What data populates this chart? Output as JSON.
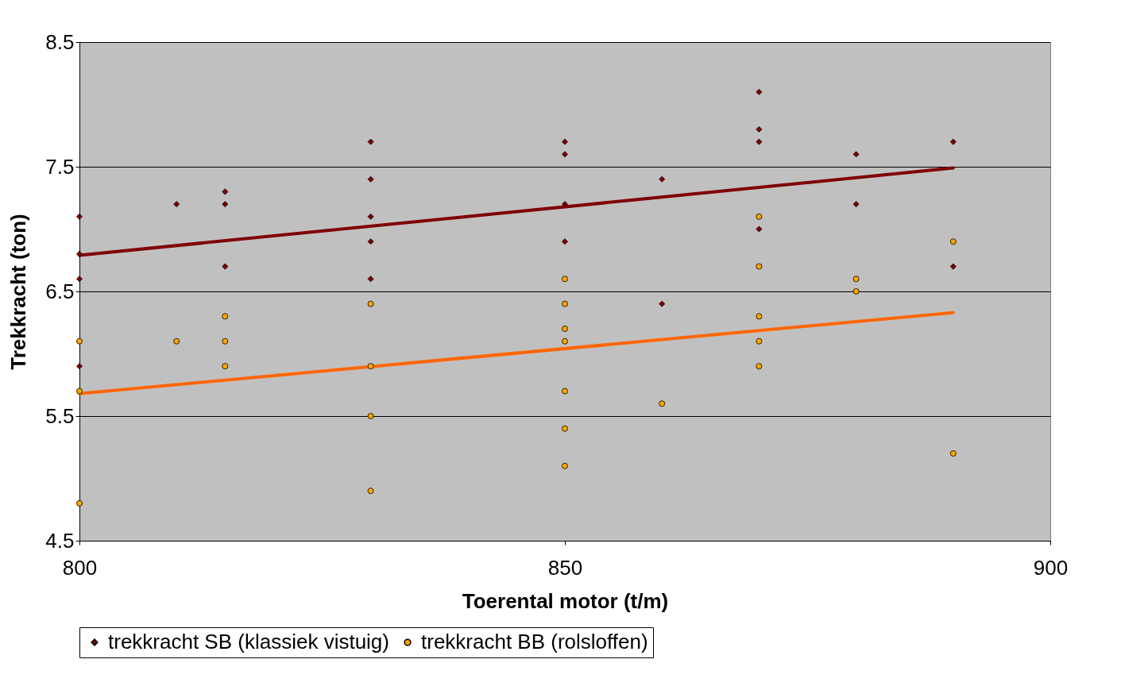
{
  "chart_data": {
    "type": "scatter",
    "xlabel": "Toerental motor (t/m)",
    "ylabel": "Trekkracht (ton)",
    "xlim": [
      800,
      900
    ],
    "xticks": [
      800,
      850,
      900
    ],
    "ylim": [
      4.5,
      8.5
    ],
    "yticks": [
      4.5,
      5.5,
      6.5,
      7.5,
      8.5
    ],
    "grid": "y",
    "legend": "bottom",
    "series": [
      {
        "name": "trekkracht SB (klassiek vistuig)",
        "color": "#800000",
        "marker": "diamond",
        "x": [
          800,
          800,
          800,
          800,
          810,
          815,
          815,
          815,
          830,
          830,
          830,
          830,
          830,
          850,
          850,
          850,
          850,
          860,
          860,
          870,
          870,
          870,
          870,
          880,
          880,
          890,
          890
        ],
        "values": [
          7.1,
          6.8,
          6.6,
          5.9,
          7.2,
          7.3,
          7.2,
          6.7,
          7.7,
          7.4,
          7.1,
          6.9,
          6.6,
          7.7,
          7.6,
          7.2,
          6.9,
          7.4,
          6.4,
          8.1,
          7.8,
          7.7,
          7.0,
          7.6,
          7.2,
          7.7,
          6.7
        ]
      },
      {
        "name": "trekkracht BB (rolsloffen)",
        "color": "#ffa500",
        "marker": "circle",
        "x": [
          800,
          800,
          800,
          810,
          815,
          815,
          815,
          830,
          830,
          830,
          830,
          850,
          850,
          850,
          850,
          850,
          850,
          850,
          860,
          870,
          870,
          870,
          870,
          870,
          880,
          880,
          890,
          890
        ],
        "values": [
          6.1,
          5.7,
          4.8,
          6.1,
          6.3,
          6.1,
          5.9,
          6.4,
          5.9,
          5.5,
          4.9,
          6.6,
          6.4,
          6.2,
          6.1,
          5.7,
          5.4,
          5.1,
          5.6,
          7.1,
          6.7,
          6.3,
          6.1,
          5.9,
          6.6,
          6.5,
          6.9,
          5.2
        ]
      },
      {
        "type": "line",
        "color": "#800000",
        "x": [
          800,
          890
        ],
        "values": [
          6.79,
          7.49
        ]
      },
      {
        "type": "line",
        "color": "#ff6600",
        "x": [
          800,
          890
        ],
        "values": [
          5.68,
          6.33
        ]
      }
    ]
  }
}
